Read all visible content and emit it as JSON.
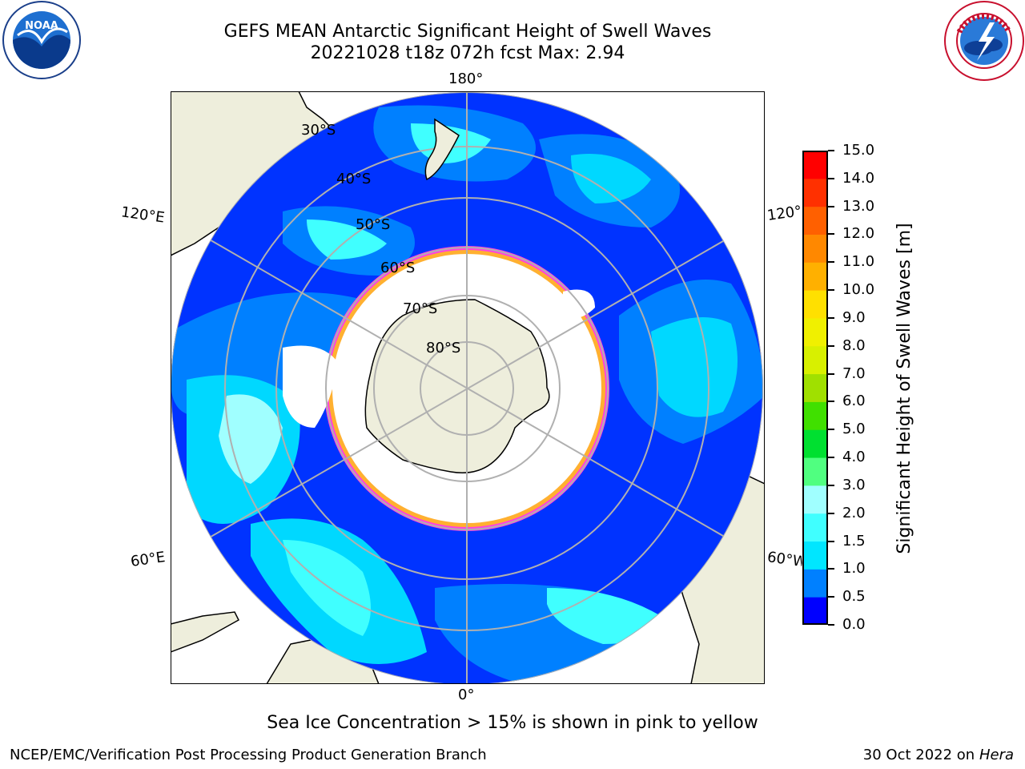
{
  "title_line1": "GEFS MEAN Antarctic Significant Height of Swell Waves",
  "title_line2": "20221028 t18z 072h fcst   Max: 2.94",
  "logos": {
    "left": "NOAA",
    "right": "NATIONAL WEATHER SERVICE"
  },
  "map": {
    "projection": "south-polar-stereographic",
    "lat_labels": [
      "30°S",
      "40°S",
      "50°S",
      "60°S",
      "70°S",
      "80°S"
    ],
    "lon_labels": {
      "top": "180°",
      "bottom": "0°",
      "left_top": "120°E",
      "left_bottom": "60°E",
      "right_top": "120°W",
      "right_bottom": "60°W"
    },
    "colors": {
      "land": "#eeeedc",
      "ice": "#ffffff",
      "ice_edge": "#ff33cc",
      "ice_edge2": "#ffb030",
      "grid": "#b0b0b0"
    }
  },
  "colorbar": {
    "label": "Significant Height of Swell Waves [m]",
    "ticks": [
      "0.0",
      "0.5",
      "1.0",
      "1.5",
      "2.0",
      "3.0",
      "4.0",
      "5.0",
      "6.0",
      "7.0",
      "8.0",
      "9.0",
      "10.0",
      "11.0",
      "12.0",
      "13.0",
      "14.0",
      "15.0"
    ],
    "colors": [
      "#0000ff",
      "#0080ff",
      "#00e6ff",
      "#40ffff",
      "#a0ffff",
      "#50ff80",
      "#00e030",
      "#40e000",
      "#a0e000",
      "#d8f000",
      "#f0f000",
      "#ffe000",
      "#ffb000",
      "#ff8800",
      "#ff6000",
      "#ff3000",
      "#ff0000"
    ]
  },
  "note": "Sea Ice Concentration > 15% is shown in pink to yellow",
  "footer": {
    "left": "NCEP/EMC/Verification Post Processing Product Generation Branch",
    "right_date": "30 Oct 2022 on",
    "right_host": "Hera"
  }
}
